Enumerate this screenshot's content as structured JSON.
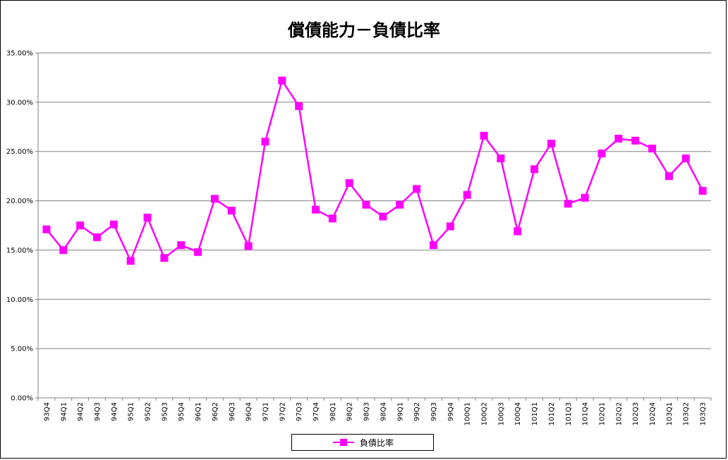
{
  "chart_data": {
    "type": "line",
    "title": "償債能力－負債比率",
    "xlabel": "",
    "ylabel": "",
    "ylim": [
      0,
      35
    ],
    "yticks": [
      "0.00%",
      "5.00%",
      "10.00%",
      "15.00%",
      "20.00%",
      "25.00%",
      "30.00%",
      "35.00%"
    ],
    "grid": true,
    "legend_position": "bottom",
    "categories": [
      "93Q4",
      "94Q1",
      "94Q2",
      "94Q3",
      "94Q4",
      "95Q1",
      "95Q2",
      "95Q3",
      "95Q4",
      "96Q1",
      "96Q2",
      "96Q3",
      "96Q4",
      "97Q1",
      "97Q2",
      "97Q3",
      "97Q4",
      "98Q1",
      "98Q2",
      "98Q3",
      "98Q4",
      "99Q1",
      "99Q2",
      "99Q3",
      "99Q4",
      "100Q1",
      "100Q2",
      "100Q3",
      "100Q4",
      "101Q1",
      "101Q2",
      "101Q3",
      "101Q4",
      "102Q1",
      "102Q2",
      "102Q3",
      "102Q4",
      "103Q1",
      "103Q2",
      "103Q3"
    ],
    "series": [
      {
        "name": "負債比率",
        "color": "#ff00ff",
        "marker": "square",
        "values": [
          17.1,
          15.0,
          17.5,
          16.3,
          17.6,
          13.9,
          18.3,
          14.2,
          15.5,
          14.8,
          20.2,
          19.0,
          15.4,
          26.0,
          32.2,
          29.6,
          19.1,
          18.2,
          21.8,
          19.6,
          18.4,
          19.6,
          21.2,
          15.5,
          17.4,
          20.6,
          26.6,
          24.3,
          16.9,
          23.2,
          25.8,
          19.7,
          20.3,
          24.8,
          26.3,
          26.1,
          25.3,
          22.5,
          24.3,
          21.0
        ]
      }
    ]
  },
  "colors": {
    "series": "#ff00ff",
    "grid": "#808080",
    "axis": "#808080",
    "text": "#000000"
  }
}
